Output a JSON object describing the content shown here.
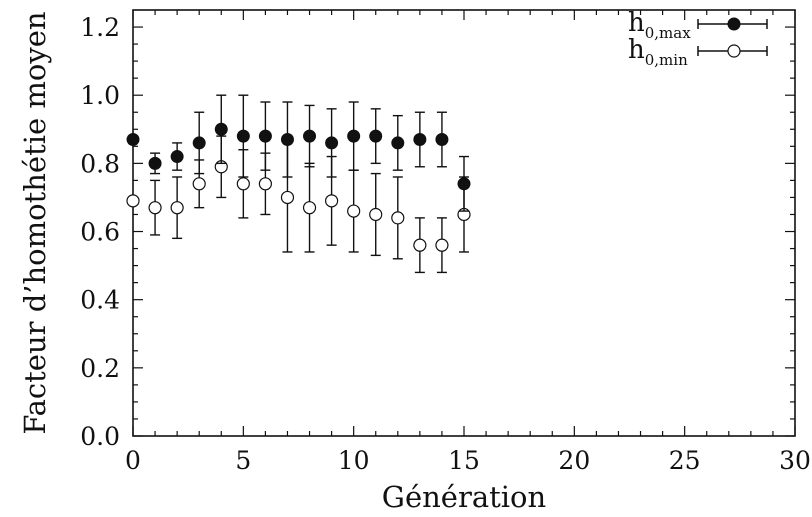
{
  "chart_data": {
    "type": "scatter",
    "xlabel": "Génération",
    "ylabel": "Facteur d’homothétie moyen",
    "xlim": [
      0,
      30
    ],
    "ylim": [
      0,
      1.25
    ],
    "xticks": [
      0,
      5,
      10,
      15,
      20,
      25,
      30
    ],
    "yticks": [
      "0.0",
      "0.2",
      "0.4",
      "0.6",
      "0.8",
      "1.0",
      "1.2"
    ],
    "grid": false,
    "legend_position": "top-right",
    "series": [
      {
        "name": "h0,max",
        "label_main": "h",
        "label_sub": "0,max",
        "marker": "filled-circle",
        "color": "#111111",
        "x": [
          0,
          1,
          2,
          3,
          4,
          5,
          6,
          7,
          8,
          9,
          10,
          11,
          12,
          13,
          14,
          15
        ],
        "y": [
          0.87,
          0.8,
          0.82,
          0.86,
          0.9,
          0.88,
          0.88,
          0.87,
          0.88,
          0.86,
          0.88,
          0.88,
          0.86,
          0.87,
          0.87,
          0.74
        ],
        "err": [
          0,
          0.03,
          0.04,
          0.09,
          0.1,
          0.12,
          0.1,
          0.11,
          0.09,
          0.1,
          0.1,
          0.08,
          0.08,
          0.08,
          0.08,
          0.08
        ]
      },
      {
        "name": "h0,min",
        "label_main": "h",
        "label_sub": "0,min",
        "marker": "open-circle",
        "color": "#111111",
        "x": [
          0,
          1,
          2,
          3,
          4,
          5,
          6,
          7,
          8,
          9,
          10,
          11,
          12,
          13,
          14,
          15
        ],
        "y": [
          0.69,
          0.67,
          0.67,
          0.74,
          0.79,
          0.74,
          0.74,
          0.7,
          0.67,
          0.69,
          0.66,
          0.65,
          0.64,
          0.56,
          0.56,
          0.65
        ],
        "err": [
          0,
          0.08,
          0.09,
          0.07,
          0.09,
          0.1,
          0.09,
          0.16,
          0.13,
          0.13,
          0.12,
          0.12,
          0.12,
          0.08,
          0.08,
          0.11
        ]
      }
    ]
  }
}
